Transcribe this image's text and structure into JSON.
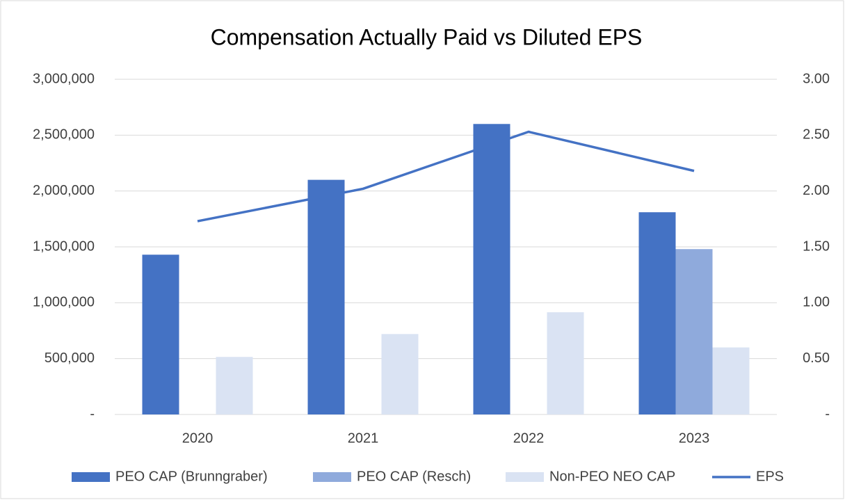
{
  "chart_data": {
    "type": "bar_line",
    "title": "Compensation Actually Paid vs Diluted EPS",
    "categories": [
      "2020",
      "2021",
      "2022",
      "2023"
    ],
    "series": [
      {
        "name": "PEO CAP (Brunngraber)",
        "color": "#4472c4",
        "values": [
          1430000,
          2100000,
          2600000,
          1810000
        ]
      },
      {
        "name": "PEO CAP (Resch)",
        "color": "#8faadc",
        "values": [
          null,
          null,
          null,
          1480000
        ]
      },
      {
        "name": "Non-PEO NEO CAP",
        "color": "#dae3f3",
        "values": [
          515000,
          720000,
          915000,
          600000
        ]
      },
      {
        "name": "EPS",
        "color": "#4472c4",
        "type": "line",
        "axis": "y2",
        "values": [
          1.73,
          2.02,
          2.53,
          2.18
        ]
      }
    ],
    "ylim": [
      0,
      3000000
    ],
    "yticks": [
      {
        "value": 0,
        "label": "-"
      },
      {
        "value": 500000,
        "label": "500,000"
      },
      {
        "value": 1000000,
        "label": "1,000,000"
      },
      {
        "value": 1500000,
        "label": "1,500,000"
      },
      {
        "value": 2000000,
        "label": "2,000,000"
      },
      {
        "value": 2500000,
        "label": "2,500,000"
      },
      {
        "value": 3000000,
        "label": "3,000,000"
      }
    ],
    "y2lim": [
      0,
      3
    ],
    "y2ticks": [
      {
        "value": 0,
        "label": "-"
      },
      {
        "value": 0.5,
        "label": "0.50"
      },
      {
        "value": 1,
        "label": "1.00"
      },
      {
        "value": 1.5,
        "label": "1.50"
      },
      {
        "value": 2,
        "label": "2.00"
      },
      {
        "value": 2.5,
        "label": "2.50"
      },
      {
        "value": 3,
        "label": "3.00"
      }
    ],
    "grid": true,
    "legend": "bottom"
  }
}
